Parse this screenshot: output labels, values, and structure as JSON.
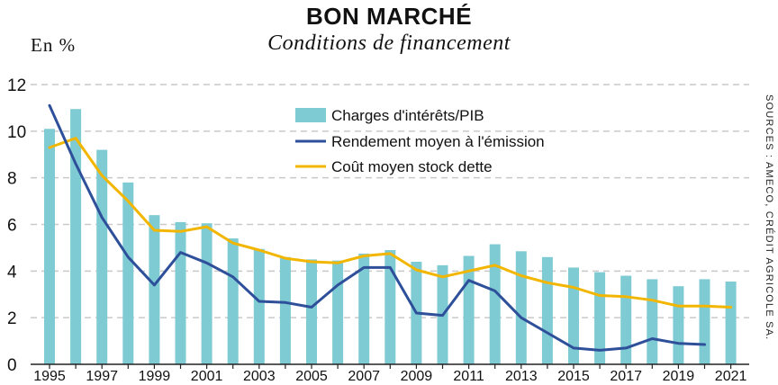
{
  "header": {
    "title": "BON MARCHÉ",
    "subtitle": "Conditions de financement",
    "unit": "En %",
    "sources": "SOURCES : AMECO, CRÉDIT AGRICOLE SA."
  },
  "colors": {
    "bars": "#7fcbd3",
    "rendement": "#2e4f9a",
    "cout": "#f2b600",
    "grid": "#c9c9c9"
  },
  "chart_data": {
    "type": "bar",
    "title": "BON MARCHÉ",
    "subtitle": "Conditions de financement",
    "ylabel": "En %",
    "ylim": [
      0,
      12
    ],
    "yticks": [
      "0",
      "2",
      "4",
      "6",
      "8",
      "10",
      "12"
    ],
    "x": [
      1995,
      1996,
      1997,
      1998,
      1999,
      2000,
      2001,
      2002,
      2003,
      2004,
      2005,
      2006,
      2007,
      2008,
      2009,
      2010,
      2011,
      2012,
      2013,
      2014,
      2015,
      2016,
      2017,
      2018,
      2019,
      2020,
      2021
    ],
    "xtick_labels": [
      "1995",
      "1997",
      "1999",
      "2001",
      "2003",
      "2005",
      "2007",
      "2009",
      "2011",
      "2013",
      "2015",
      "2017",
      "2019",
      "2021"
    ],
    "grid": true,
    "legend_position": "top-center",
    "series": [
      {
        "name": "Charges d'intérêts/PIB",
        "kind": "bar",
        "values": [
          10.1,
          10.95,
          9.2,
          7.8,
          6.4,
          6.1,
          6.05,
          5.4,
          4.95,
          4.6,
          4.5,
          4.45,
          4.75,
          4.9,
          4.4,
          4.25,
          4.65,
          5.15,
          4.85,
          4.6,
          4.15,
          3.95,
          3.8,
          3.65,
          3.35,
          3.65,
          3.55
        ]
      },
      {
        "name": "Rendement moyen à l'émission",
        "kind": "line",
        "values": [
          11.1,
          8.6,
          6.3,
          4.6,
          3.4,
          4.8,
          4.35,
          3.75,
          2.7,
          2.65,
          2.45,
          3.4,
          4.15,
          4.15,
          2.2,
          2.1,
          3.6,
          3.15,
          2.0,
          1.35,
          0.7,
          0.6,
          0.7,
          1.1,
          0.9,
          0.85,
          null
        ]
      },
      {
        "name": "Coût moyen stock dette",
        "kind": "line",
        "values": [
          9.3,
          9.7,
          8.1,
          7.0,
          5.75,
          5.7,
          5.9,
          5.2,
          4.9,
          4.55,
          4.4,
          4.35,
          4.65,
          4.75,
          4.05,
          3.75,
          4.0,
          4.25,
          3.8,
          3.5,
          3.3,
          2.95,
          2.9,
          2.75,
          2.5,
          2.5,
          2.45
        ]
      }
    ]
  }
}
